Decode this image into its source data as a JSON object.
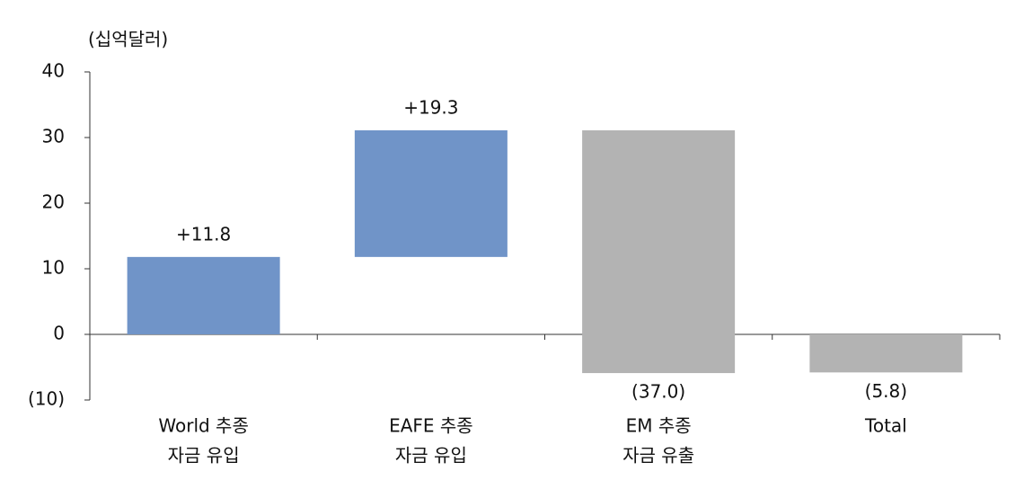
{
  "chart_data": {
    "type": "waterfall",
    "y_unit_label": "(십억달러)",
    "categories": [
      [
        "World 추종",
        "자금 유입"
      ],
      [
        "EAFE 추종",
        "자금 유입"
      ],
      [
        "EM 추종",
        "자금 유출"
      ],
      [
        "Total"
      ]
    ],
    "values": [
      11.8,
      19.3,
      -37.0,
      -5.8
    ],
    "value_labels": [
      "+11.8",
      "+19.3",
      "(37.0)",
      "(5.8)"
    ],
    "is_total": [
      false,
      false,
      false,
      true
    ],
    "colors": [
      "#7094c8",
      "#7094c8",
      "#b3b3b3",
      "#b3b3b3"
    ],
    "ylim": [
      -10,
      40
    ],
    "yticks": [
      {
        "value": -10,
        "label": "(10)"
      },
      0,
      10,
      20,
      30,
      40
    ]
  }
}
